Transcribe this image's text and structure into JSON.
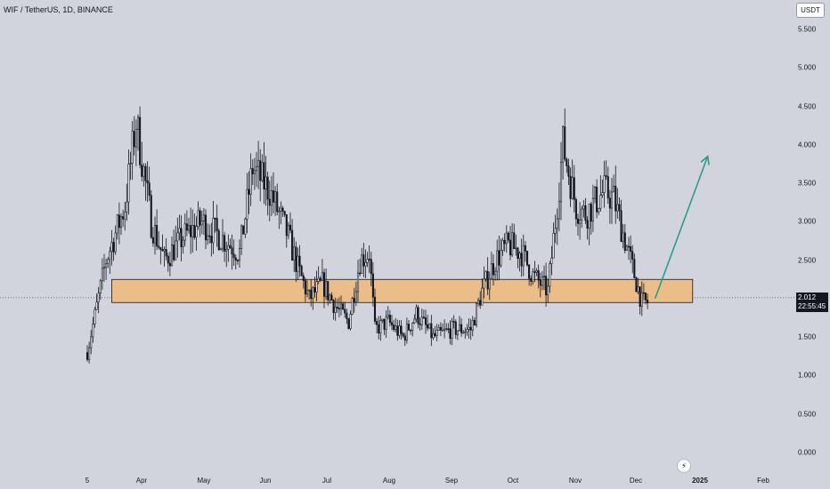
{
  "header": {
    "symbol_title": "WIF / TetherUS, 1D, BINANCE",
    "currency_button": "USDT"
  },
  "price_tag": {
    "price": "2.012",
    "countdown": "22:55:45"
  },
  "colors": {
    "background": "#d1d4dc",
    "candle": "#131722",
    "zone_fill": "#f0b87a",
    "zone_border": "#131722",
    "arrow": "#22998a"
  },
  "watermark_icon": "tradingview-lightning-icon",
  "chart_data": {
    "type": "candlestick",
    "title": "",
    "x_ticks": [
      "5",
      "Apr",
      "May",
      "Jun",
      "Jul",
      "Aug",
      "Sep",
      "Oct",
      "Nov",
      "Dec",
      "2025",
      "Feb"
    ],
    "y_ticks": [
      "0.000",
      "0.500",
      "1.000",
      "1.500",
      "2.000",
      "2.500",
      "3.000",
      "3.500",
      "4.000",
      "4.500",
      "5.000",
      "5.500"
    ],
    "ylim": [
      0,
      5.5
    ],
    "x_range": [
      "2024-03-05",
      "2025-02-28"
    ],
    "current_price": 2.012,
    "series": [
      {
        "x": [
          "2024-03-05",
          "2024-03-15",
          "2024-03-25",
          "2024-03-31",
          "2024-04-08",
          "2024-04-15",
          "2024-04-25",
          "2024-05-05",
          "2024-05-15",
          "2024-05-25",
          "2024-06-01",
          "2024-06-10",
          "2024-06-20",
          "2024-06-25",
          "2024-07-01",
          "2024-07-08",
          "2024-07-15",
          "2024-07-22",
          "2024-07-28",
          "2024-08-02",
          "2024-08-05",
          "2024-08-12",
          "2024-08-20",
          "2024-08-27",
          "2024-09-05",
          "2024-09-15",
          "2024-09-25",
          "2024-10-01",
          "2024-10-08",
          "2024-10-15",
          "2024-10-22",
          "2024-10-28",
          "2024-11-05",
          "2024-11-09",
          "2024-11-13",
          "2024-11-20",
          "2024-11-25",
          "2024-12-05",
          "2024-12-10",
          "2024-12-20",
          "2024-12-25"
        ],
        "close": [
          1.3,
          2.5,
          3.2,
          4.3,
          3.0,
          2.5,
          2.8,
          3.0,
          2.8,
          2.6,
          3.7,
          3.4,
          2.8,
          2.4,
          2.0,
          2.2,
          1.9,
          1.7,
          2.5,
          2.6,
          1.6,
          1.7,
          1.5,
          1.8,
          1.5,
          1.6,
          1.6,
          2.1,
          2.5,
          2.7,
          2.6,
          2.3,
          2.1,
          3.0,
          4.0,
          3.2,
          3.1,
          3.4,
          3.3,
          2.4,
          1.95
        ]
      }
    ],
    "zone": {
      "low": 1.95,
      "high": 2.25,
      "from": "2024-03-18",
      "to": "2025-01-21"
    },
    "arrow": {
      "from": {
        "x": "2025-01-01",
        "y": 2.0
      },
      "to": {
        "x": "2025-01-29",
        "y": 3.85
      }
    }
  }
}
